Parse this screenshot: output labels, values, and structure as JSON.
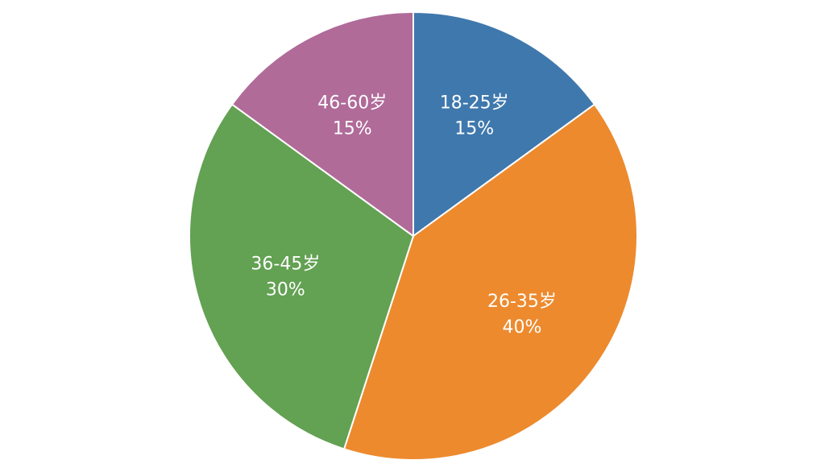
{
  "chart_data": {
    "type": "pie",
    "categories": [
      "18-25岁",
      "26-35岁",
      "36-45岁",
      "46-60岁"
    ],
    "values": [
      15,
      40,
      30,
      15
    ],
    "value_labels": [
      "15%",
      "40%",
      "30%",
      "15%"
    ],
    "colors": [
      "#3f78ad",
      "#ed8a2e",
      "#63a153",
      "#b06b99"
    ]
  }
}
